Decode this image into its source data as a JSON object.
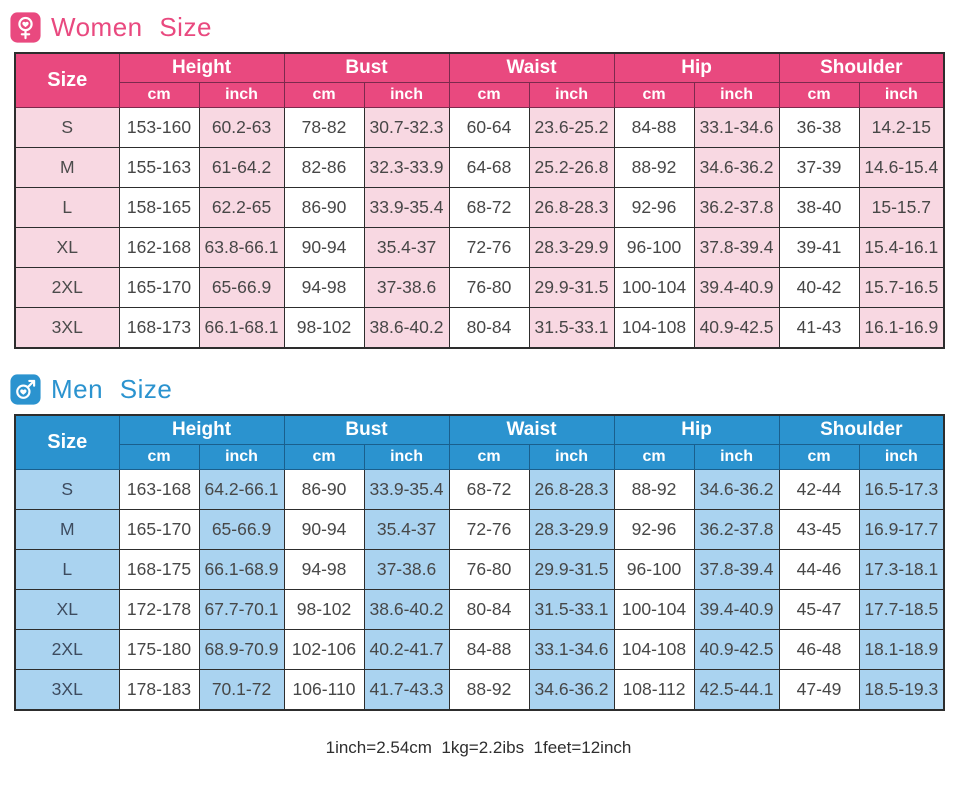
{
  "labels": {
    "size": "Size",
    "cm": "cm",
    "inch": "inch",
    "measures": [
      "Height",
      "Bust",
      "Waist",
      "Hip",
      "Shoulder"
    ]
  },
  "women": {
    "title": "Women Size",
    "accent": "#e9497f",
    "light": "#f8d8e2",
    "icon": "female-heart-icon",
    "rows": [
      [
        "S",
        "153-160",
        "60.2-63",
        "78-82",
        "30.7-32.3",
        "60-64",
        "23.6-25.2",
        "84-88",
        "33.1-34.6",
        "36-38",
        "14.2-15"
      ],
      [
        "M",
        "155-163",
        "61-64.2",
        "82-86",
        "32.3-33.9",
        "64-68",
        "25.2-26.8",
        "88-92",
        "34.6-36.2",
        "37-39",
        "14.6-15.4"
      ],
      [
        "L",
        "158-165",
        "62.2-65",
        "86-90",
        "33.9-35.4",
        "68-72",
        "26.8-28.3",
        "92-96",
        "36.2-37.8",
        "38-40",
        "15-15.7"
      ],
      [
        "XL",
        "162-168",
        "63.8-66.1",
        "90-94",
        "35.4-37",
        "72-76",
        "28.3-29.9",
        "96-100",
        "37.8-39.4",
        "39-41",
        "15.4-16.1"
      ],
      [
        "2XL",
        "165-170",
        "65-66.9",
        "94-98",
        "37-38.6",
        "76-80",
        "29.9-31.5",
        "100-104",
        "39.4-40.9",
        "40-42",
        "15.7-16.5"
      ],
      [
        "3XL",
        "168-173",
        "66.1-68.1",
        "98-102",
        "38.6-40.2",
        "80-84",
        "31.5-33.1",
        "104-108",
        "40.9-42.5",
        "41-43",
        "16.1-16.9"
      ]
    ]
  },
  "men": {
    "title": "Men Size",
    "accent": "#2b93cf",
    "light": "#aad3f0",
    "icon": "male-heart-icon",
    "rows": [
      [
        "S",
        "163-168",
        "64.2-66.1",
        "86-90",
        "33.9-35.4",
        "68-72",
        "26.8-28.3",
        "88-92",
        "34.6-36.2",
        "42-44",
        "16.5-17.3"
      ],
      [
        "M",
        "165-170",
        "65-66.9",
        "90-94",
        "35.4-37",
        "72-76",
        "28.3-29.9",
        "92-96",
        "36.2-37.8",
        "43-45",
        "16.9-17.7"
      ],
      [
        "L",
        "168-175",
        "66.1-68.9",
        "94-98",
        "37-38.6",
        "76-80",
        "29.9-31.5",
        "96-100",
        "37.8-39.4",
        "44-46",
        "17.3-18.1"
      ],
      [
        "XL",
        "172-178",
        "67.7-70.1",
        "98-102",
        "38.6-40.2",
        "80-84",
        "31.5-33.1",
        "100-104",
        "39.4-40.9",
        "45-47",
        "17.7-18.5"
      ],
      [
        "2XL",
        "175-180",
        "68.9-70.9",
        "102-106",
        "40.2-41.7",
        "84-88",
        "33.1-34.6",
        "104-108",
        "40.9-42.5",
        "46-48",
        "18.1-18.9"
      ],
      [
        "3XL",
        "178-183",
        "70.1-72",
        "106-110",
        "41.7-43.3",
        "88-92",
        "34.6-36.2",
        "108-112",
        "42.5-44.1",
        "47-49",
        "18.5-19.3"
      ]
    ]
  },
  "footer": {
    "note": "1inch=2.54cm  1kg=2.2ibs  1feet=12inch"
  }
}
